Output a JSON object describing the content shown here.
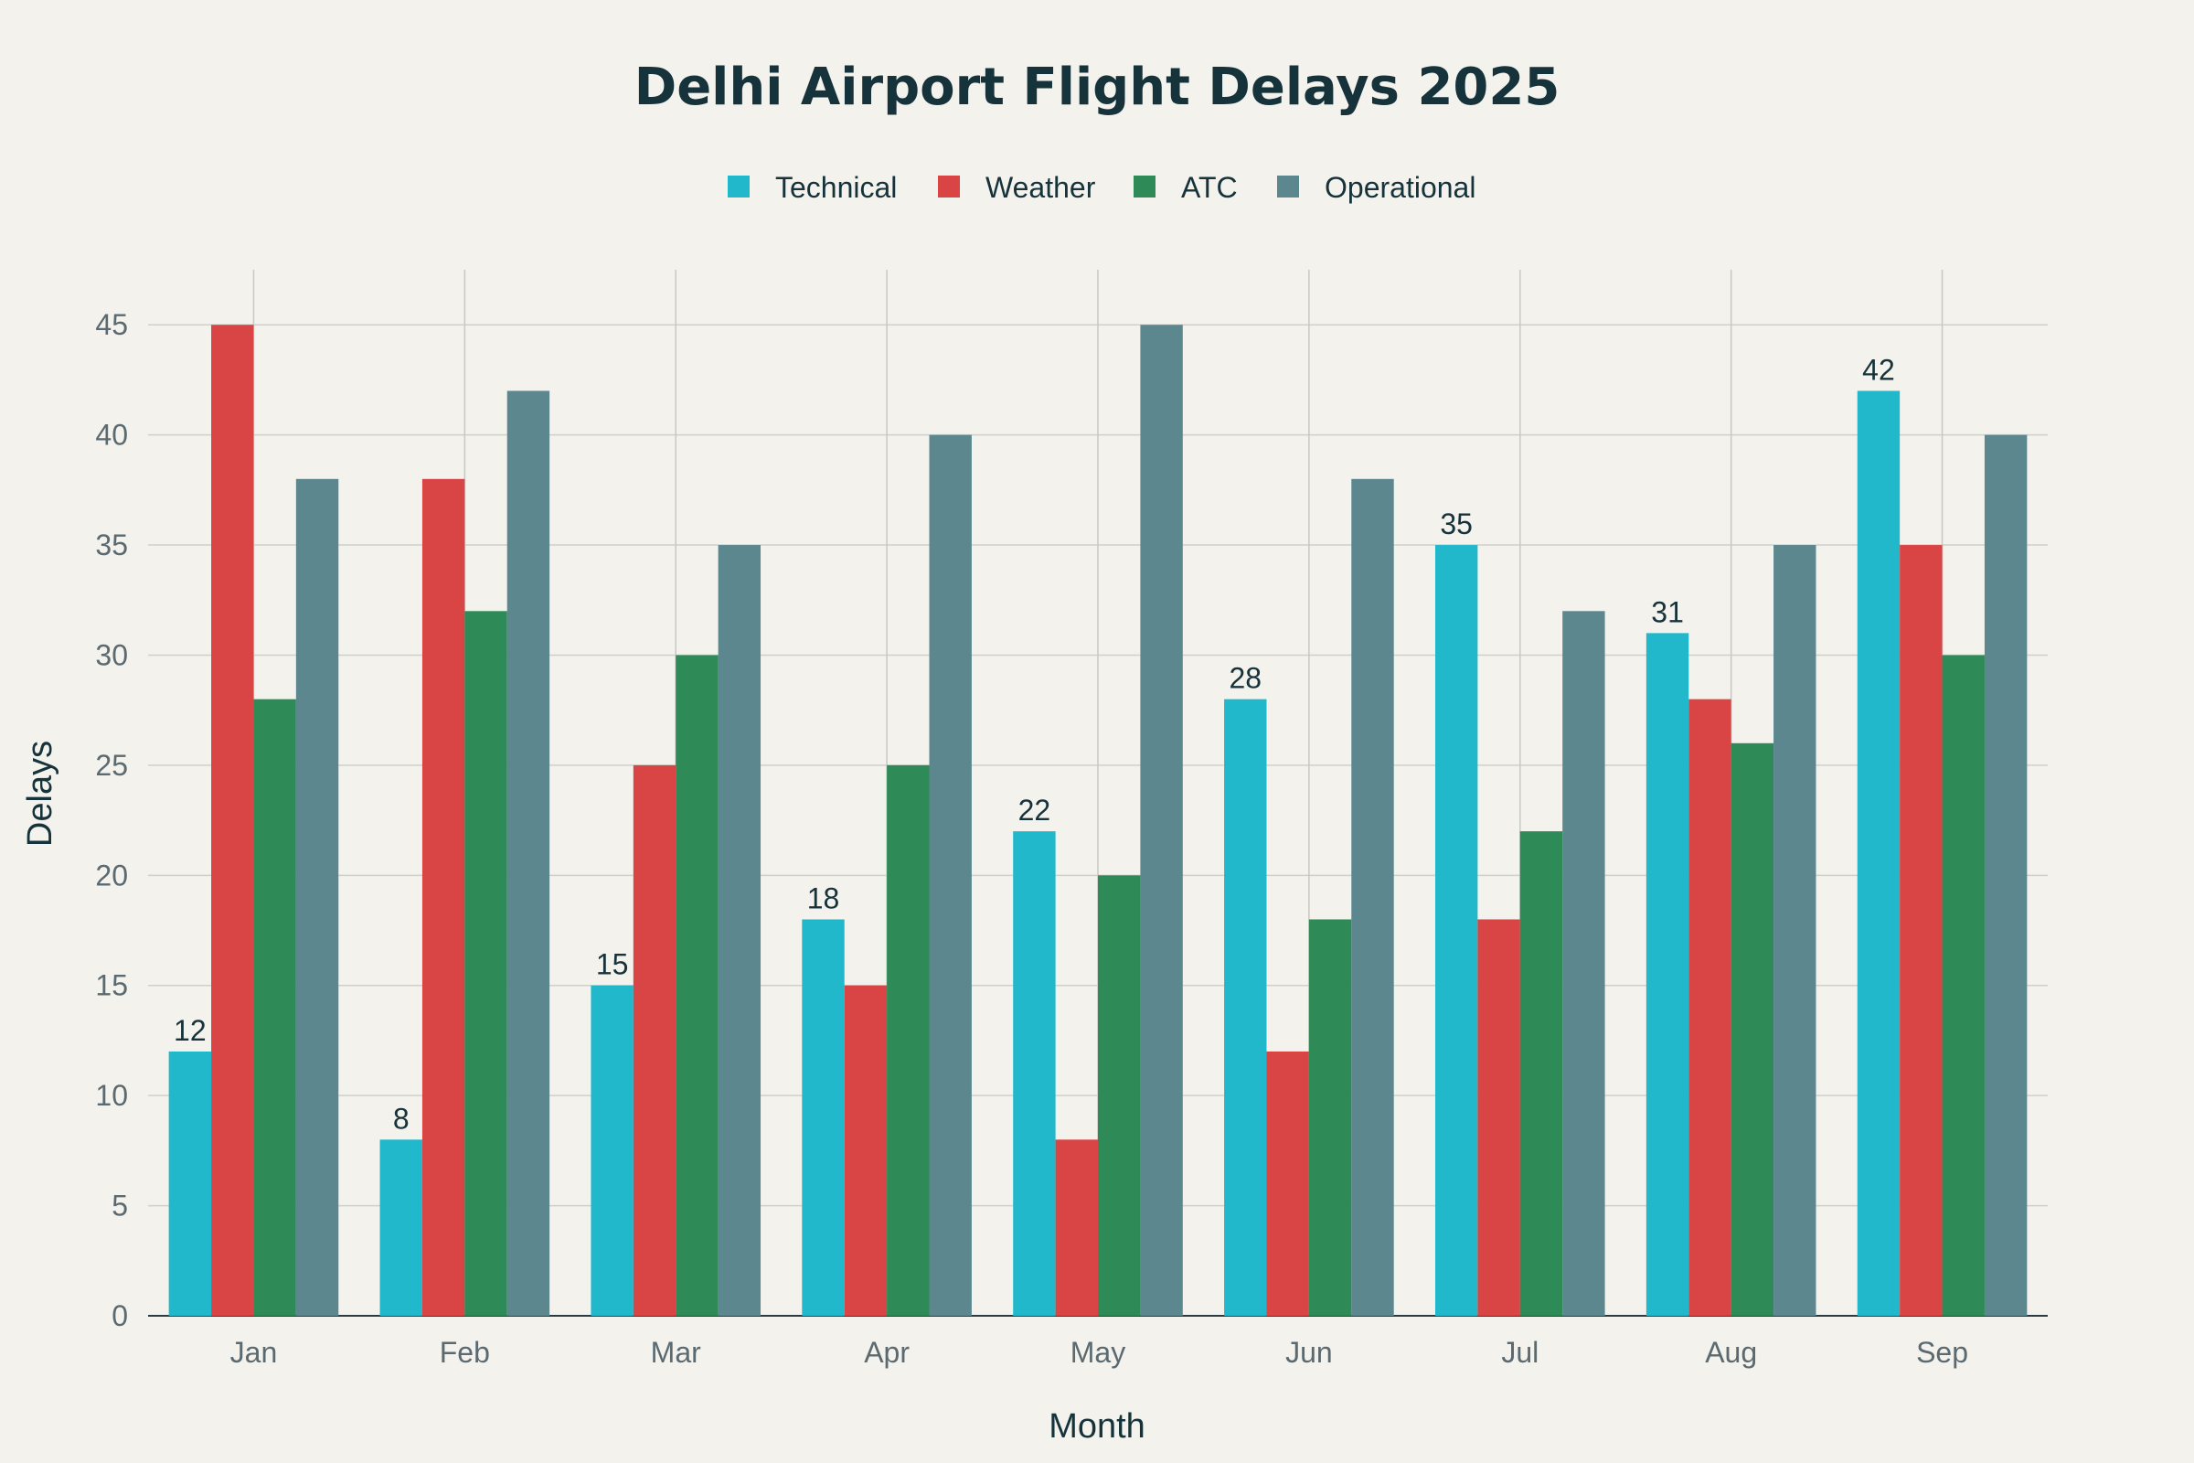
{
  "chart_data": {
    "type": "bar",
    "title": "Delhi Airport Flight Delays 2025",
    "xlabel": "Month",
    "ylabel": "Delays",
    "categories": [
      "Jan",
      "Feb",
      "Mar",
      "Apr",
      "May",
      "Jun",
      "Jul",
      "Aug",
      "Sep"
    ],
    "series": [
      {
        "name": "Technical",
        "color": "#22b8cc",
        "values": [
          12,
          8,
          15,
          18,
          22,
          28,
          35,
          31,
          42
        ],
        "show_labels": true
      },
      {
        "name": "Weather",
        "color": "#d94545",
        "values": [
          45,
          38,
          25,
          15,
          8,
          12,
          18,
          28,
          35
        ],
        "show_labels": false
      },
      {
        "name": "ATC",
        "color": "#2e8b57",
        "values": [
          28,
          32,
          30,
          25,
          20,
          18,
          22,
          26,
          30
        ],
        "show_labels": false
      },
      {
        "name": "Operational",
        "color": "#5d878f",
        "values": [
          38,
          42,
          35,
          40,
          45,
          38,
          32,
          35,
          40
        ],
        "show_labels": false
      }
    ],
    "ylim": [
      0,
      47.5
    ],
    "yticks": [
      0,
      5,
      10,
      15,
      20,
      25,
      30,
      35,
      40,
      45
    ],
    "grid": true,
    "legend_position": "top-center"
  }
}
